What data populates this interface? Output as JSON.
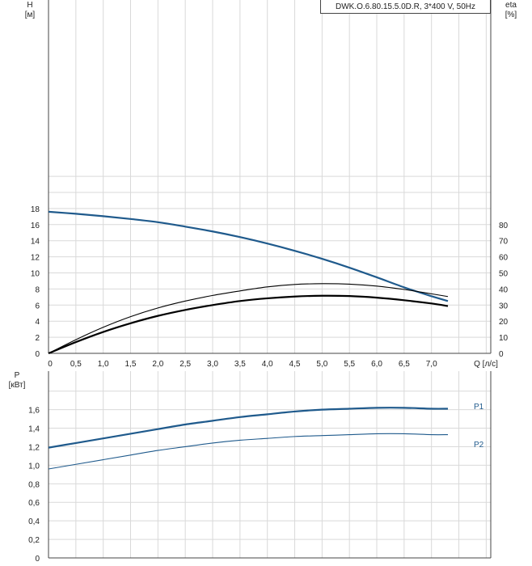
{
  "model_label": "DWK.O.6.80.15.5.0D.R, 3*400 V, 50Hz",
  "colors": {
    "blue": "#1f5a8c",
    "black": "#000000",
    "grid": "#d9d9d9",
    "axis": "#444444",
    "text": "#222222"
  },
  "chart_data": [
    {
      "type": "line",
      "title": "",
      "ylabel": "H",
      "yunit": "[м]",
      "ylabel_right": "eta",
      "yunit_right": "[%]",
      "xlabel": "Q [л/с]",
      "xlim": [
        0,
        8.0
      ],
      "ylim": [
        0,
        22
      ],
      "ylim_right": [
        0,
        110
      ],
      "grid": true,
      "x_ticks": [
        0,
        0.5,
        1.0,
        1.5,
        2.0,
        2.5,
        3.0,
        3.5,
        4.0,
        4.5,
        5.0,
        5.5,
        6.0,
        6.5,
        7.0
      ],
      "x_tick_labels": [
        "0",
        "0,5",
        "1,0",
        "1,5",
        "2,0",
        "2,5",
        "3,0",
        "3,5",
        "4,0",
        "4,5",
        "5,0",
        "5,5",
        "6,0",
        "6,5",
        "7,0"
      ],
      "y_ticks": [
        0,
        2,
        4,
        6,
        8,
        10,
        12,
        14,
        16,
        18
      ],
      "y_tick_labels": [
        "0",
        "2",
        "4",
        "6",
        "8",
        "10",
        "12",
        "14",
        "16",
        "18"
      ],
      "y_ticks_right": [
        0,
        10,
        20,
        30,
        40,
        50,
        60,
        70,
        80
      ],
      "y_tick_labels_right": [
        "0",
        "10",
        "20",
        "30",
        "40",
        "50",
        "60",
        "70",
        "80"
      ],
      "series": [
        {
          "axis": "left",
          "x": [
            0,
            0.5,
            1.0,
            1.5,
            2.0,
            2.5,
            3.0,
            3.5,
            4.0,
            4.5,
            5.0,
            5.5,
            6.0,
            6.5,
            7.0,
            7.3
          ],
          "y": [
            17.6,
            17.35,
            17.05,
            16.7,
            16.3,
            15.75,
            15.15,
            14.45,
            13.65,
            12.75,
            11.75,
            10.65,
            9.45,
            8.2,
            7.1,
            6.5
          ]
        },
        {
          "axis": "right",
          "x": [
            0,
            0.5,
            1.0,
            1.5,
            2.0,
            2.5,
            3.0,
            3.5,
            4.0,
            4.5,
            5.0,
            5.5,
            6.0,
            6.5,
            7.0,
            7.3
          ],
          "y": [
            0,
            8.5,
            16.2,
            22.8,
            28.2,
            32.5,
            36.0,
            38.8,
            41.3,
            42.8,
            43.3,
            43.0,
            41.8,
            39.7,
            37.0,
            35.3
          ]
        },
        {
          "axis": "right",
          "x": [
            0,
            0.5,
            1.0,
            1.5,
            2.0,
            2.5,
            3.0,
            3.5,
            4.0,
            4.5,
            5.0,
            5.5,
            6.0,
            6.5,
            7.0,
            7.3
          ],
          "y": [
            0,
            7.0,
            13.3,
            18.7,
            23.3,
            27.0,
            30.0,
            32.5,
            34.2,
            35.3,
            35.8,
            35.6,
            34.6,
            33.0,
            31.0,
            29.4
          ]
        }
      ]
    },
    {
      "type": "line",
      "title": "",
      "ylabel": "P",
      "yunit": "[кВт]",
      "xlim": [
        0,
        8.0
      ],
      "ylim": [
        0,
        1.8
      ],
      "grid": true,
      "y_ticks": [
        0,
        0.2,
        0.4,
        0.6,
        0.8,
        1.0,
        1.2,
        1.4,
        1.6
      ],
      "y_tick_labels": [
        "0",
        "0,2",
        "0,4",
        "0,6",
        "0,8",
        "1,0",
        "1,2",
        "1,4",
        "1,6"
      ],
      "series": [
        {
          "name": "P1",
          "x": [
            0,
            0.5,
            1.0,
            1.5,
            2.0,
            2.5,
            3.0,
            3.5,
            4.0,
            4.5,
            5.0,
            5.5,
            6.0,
            6.5,
            7.0,
            7.3
          ],
          "y": [
            1.19,
            1.24,
            1.29,
            1.34,
            1.39,
            1.44,
            1.48,
            1.52,
            1.55,
            1.58,
            1.6,
            1.61,
            1.62,
            1.62,
            1.61,
            1.61
          ]
        },
        {
          "name": "P2",
          "x": [
            0,
            0.5,
            1.0,
            1.5,
            2.0,
            2.5,
            3.0,
            3.5,
            4.0,
            4.5,
            5.0,
            5.5,
            6.0,
            6.5,
            7.0,
            7.3
          ],
          "y": [
            0.96,
            1.01,
            1.06,
            1.11,
            1.16,
            1.2,
            1.24,
            1.27,
            1.29,
            1.31,
            1.32,
            1.33,
            1.34,
            1.34,
            1.33,
            1.33
          ]
        }
      ]
    }
  ]
}
